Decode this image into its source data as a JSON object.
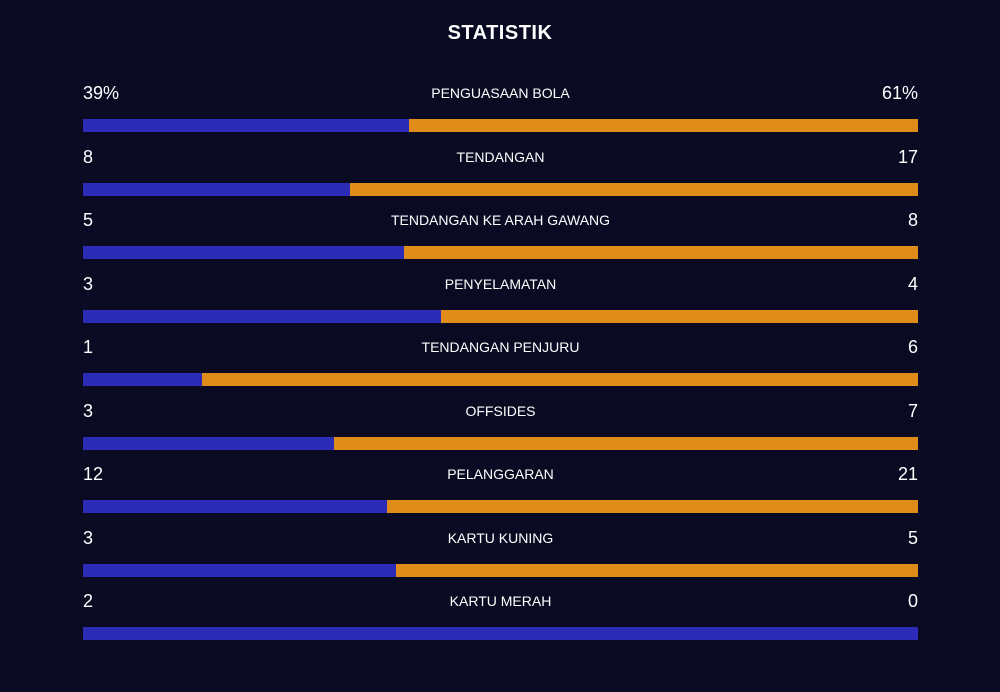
{
  "header": {
    "title": "STATISTIK"
  },
  "colors": {
    "home": "#2b2bb8",
    "away": "#e08c1a",
    "background": "#0a0a23"
  },
  "stats": [
    {
      "label": "PENGUASAAN BOLA",
      "home": "39%",
      "away": "61%",
      "home_value": 39,
      "away_value": 61
    },
    {
      "label": "TENDANGAN",
      "home": "8",
      "away": "17",
      "home_value": 8,
      "away_value": 17
    },
    {
      "label": "TENDANGAN KE ARAH GAWANG",
      "home": "5",
      "away": "8",
      "home_value": 5,
      "away_value": 8
    },
    {
      "label": "PENYELAMATAN",
      "home": "3",
      "away": "4",
      "home_value": 3,
      "away_value": 4
    },
    {
      "label": "TENDANGAN PENJURU",
      "home": "1",
      "away": "6",
      "home_value": 1,
      "away_value": 6
    },
    {
      "label": "OFFSIDES",
      "home": "3",
      "away": "7",
      "home_value": 3,
      "away_value": 7
    },
    {
      "label": "PELANGGARAN",
      "home": "12",
      "away": "21",
      "home_value": 12,
      "away_value": 21
    },
    {
      "label": "KARTU KUNING",
      "home": "3",
      "away": "5",
      "home_value": 3,
      "away_value": 5
    },
    {
      "label": "KARTU MERAH",
      "home": "2",
      "away": "0",
      "home_value": 2,
      "away_value": 0
    }
  ]
}
